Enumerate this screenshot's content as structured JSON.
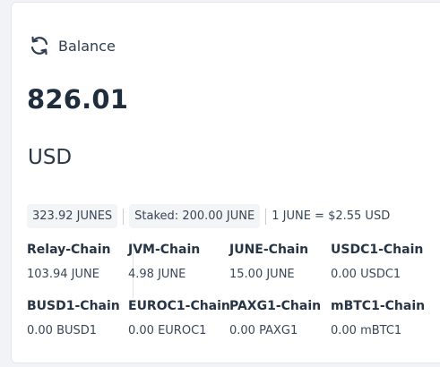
{
  "balance": {
    "icon": "refresh-icon",
    "label": "Balance",
    "amount": "826.01",
    "currency": "USD"
  },
  "summary": {
    "total": "323.92 JUNES",
    "staked": "Staked: 200.00 JUNE",
    "rate": "1 JUNE = $2.55 USD"
  },
  "chains": [
    {
      "name": "Relay-Chain",
      "value": "103.94 JUNE"
    },
    {
      "name": "JVM-Chain",
      "value": "4.98 JUNE"
    },
    {
      "name": "JUNE-Chain",
      "value": "15.00 JUNE"
    },
    {
      "name": "USDC1-Chain",
      "value": "0.00 USDC1"
    },
    {
      "name": "BUSD1-Chain",
      "value": "0.00 BUSD1"
    },
    {
      "name": "EUROC1-Chain",
      "value": "0.00 EUROC1"
    },
    {
      "name": "PAXG1-Chain",
      "value": "0.00 PAXG1"
    },
    {
      "name": "mBTC1-Chain",
      "value": "0.00 mBTC1"
    }
  ],
  "colors": {
    "text": "#1f2d3d",
    "pill_bg": "#f3f4f6",
    "card_bg": "#ffffff"
  }
}
